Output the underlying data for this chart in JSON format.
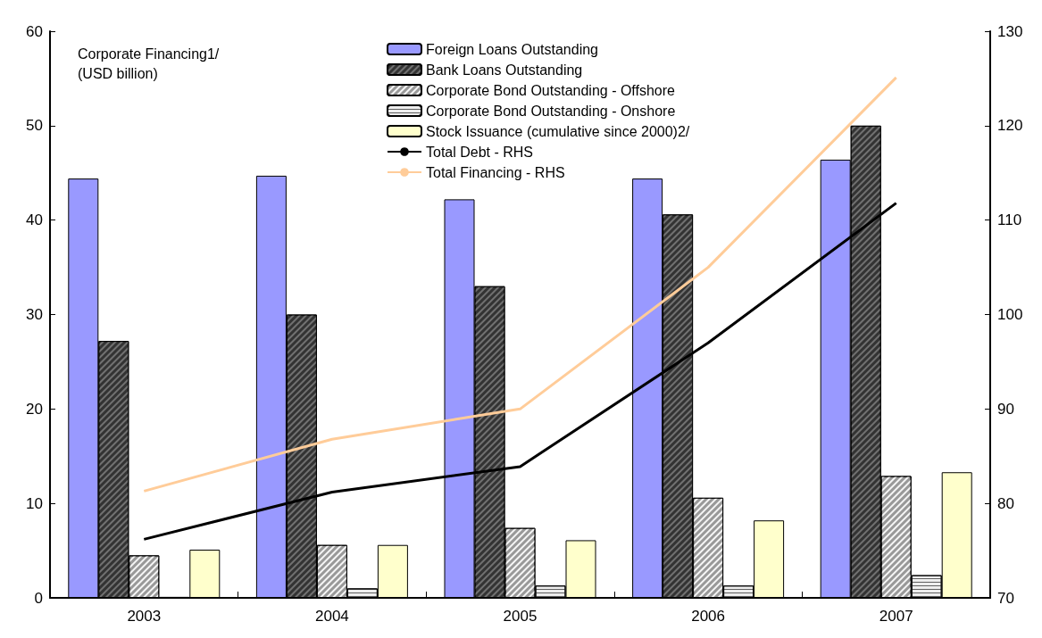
{
  "chart_data": {
    "type": "bar",
    "title": "Corporate Financing1/\n(USD billion)",
    "categories": [
      "2003",
      "2004",
      "2005",
      "2006",
      "2007"
    ],
    "series": [
      {
        "name": "Foreign Loans Outstanding",
        "color": "#9999ff",
        "values": [
          44.4,
          44.7,
          42.2,
          44.4,
          46.4
        ]
      },
      {
        "name": "Bank Loans Outstanding",
        "color": "#333333",
        "values": [
          27.2,
          30.0,
          33.0,
          40.6,
          50.0
        ]
      },
      {
        "name": "Corporate Bond Outstanding - Offshore",
        "color": "#999999",
        "values": [
          4.5,
          5.6,
          7.4,
          10.6,
          12.9
        ]
      },
      {
        "name": "Corporate Bond Outstanding - Onshore",
        "color": "#eeeeee",
        "values": [
          0.1,
          1.0,
          1.3,
          1.3,
          2.4
        ]
      },
      {
        "name": "Stock Issuance (cumulative since 2000)2/",
        "color": "#ffffcc",
        "values": [
          5.1,
          5.6,
          6.1,
          8.2,
          13.3
        ]
      },
      {
        "name": "Total Debt - RHS",
        "type": "line",
        "axis": "y2",
        "color": "#000000",
        "values": [
          76.2,
          81.2,
          83.9,
          97.0,
          111.8
        ]
      },
      {
        "name": "Total Financing - RHS",
        "type": "line",
        "axis": "y2",
        "color": "#ffcc99",
        "values": [
          81.3,
          86.8,
          90.0,
          105.0,
          125.1
        ]
      }
    ],
    "ylim": [
      0,
      60
    ],
    "yticks": [
      0,
      10,
      20,
      30,
      40,
      50,
      60
    ],
    "y2lim": [
      70,
      130
    ],
    "y2ticks": [
      70,
      80,
      90,
      100,
      110,
      120,
      130
    ],
    "grid": false,
    "legend": "top center",
    "marker": "none",
    "line_style": "solid"
  }
}
